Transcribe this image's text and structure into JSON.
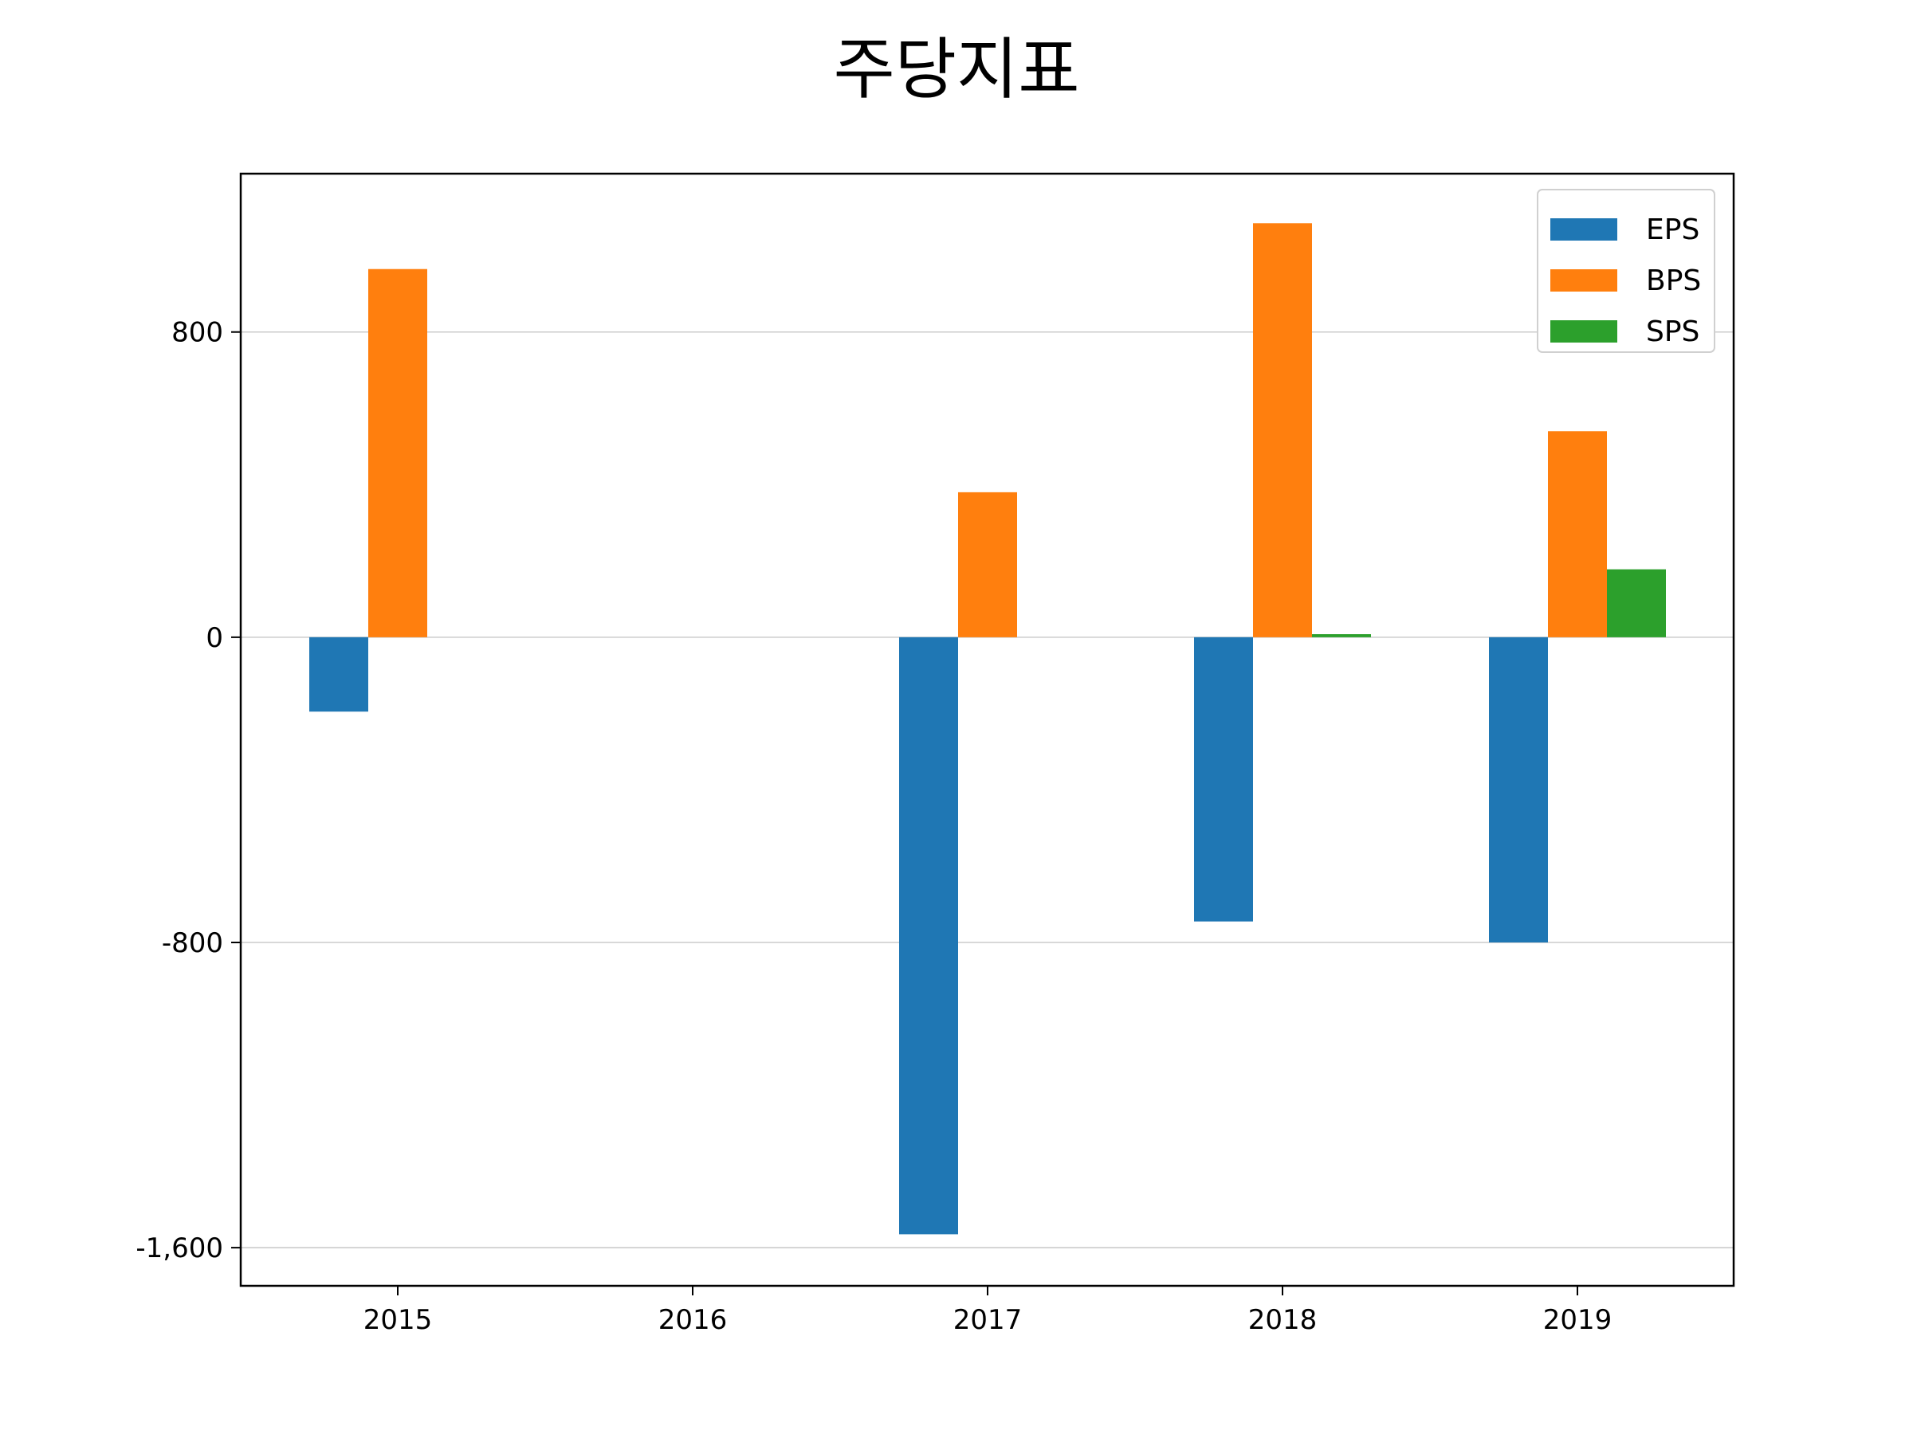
{
  "chart_data": {
    "type": "bar",
    "title": "주당지표",
    "xlabel": "",
    "ylabel": "",
    "categories": [
      "2015",
      "2016",
      "2017",
      "2018",
      "2019"
    ],
    "series": [
      {
        "name": "EPS",
        "color": "#1f77b4",
        "values": [
          -195,
          0,
          -1565,
          -745,
          -800
        ]
      },
      {
        "name": "BPS",
        "color": "#ff7f0e",
        "values": [
          965,
          0,
          380,
          1085,
          540
        ]
      },
      {
        "name": "SPS",
        "color": "#2ca02c",
        "values": [
          0,
          0,
          0,
          8,
          178
        ]
      }
    ],
    "ylim": [
      -1700,
      1215
    ],
    "yticks": [
      {
        "value": 800,
        "label": "800"
      },
      {
        "value": 0,
        "label": "0"
      },
      {
        "value": -800,
        "label": "-800"
      },
      {
        "value": -1600,
        "label": "-1,600"
      }
    ],
    "grid": "horizontal",
    "legend_position": "top-right"
  }
}
